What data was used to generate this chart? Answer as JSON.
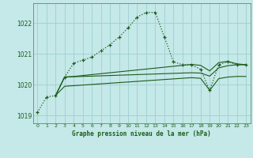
{
  "title": "Graphe pression niveau de la mer (hPa)",
  "background_color": "#c5e8e8",
  "grid_color": "#9fcfcf",
  "line_color": "#1a5c1a",
  "xlim": [
    -0.5,
    23.5
  ],
  "ylim": [
    1018.75,
    1022.65
  ],
  "xticks": [
    0,
    1,
    2,
    3,
    4,
    5,
    6,
    7,
    8,
    9,
    10,
    11,
    12,
    13,
    14,
    15,
    16,
    17,
    18,
    19,
    20,
    21,
    22,
    23
  ],
  "yticks": [
    1019,
    1020,
    1021,
    1022
  ],
  "main_x": [
    0,
    1,
    2,
    3,
    4,
    5,
    6,
    7,
    8,
    9,
    10,
    11,
    12,
    13,
    14,
    15,
    16,
    17,
    18,
    19,
    20,
    21,
    22,
    23
  ],
  "main_y": [
    1019.1,
    1019.6,
    1019.65,
    1020.25,
    1020.7,
    1020.8,
    1020.9,
    1021.1,
    1021.3,
    1021.55,
    1021.85,
    1022.2,
    1022.35,
    1022.35,
    1021.55,
    1020.75,
    1020.65,
    1020.65,
    1020.5,
    1019.82,
    1020.65,
    1020.75,
    1020.65,
    1020.65
  ],
  "line2_x": [
    2,
    3,
    4,
    5,
    6,
    7,
    8,
    9,
    10,
    11,
    12,
    13,
    14,
    15,
    16,
    17,
    18,
    19,
    20,
    21,
    22,
    23
  ],
  "line2_y": [
    1019.65,
    1020.25,
    1020.27,
    1020.3,
    1020.33,
    1020.36,
    1020.39,
    1020.42,
    1020.45,
    1020.48,
    1020.51,
    1020.54,
    1020.57,
    1020.6,
    1020.63,
    1020.66,
    1020.63,
    1020.45,
    1020.72,
    1020.76,
    1020.68,
    1020.65
  ],
  "line3_x": [
    2,
    3,
    4,
    5,
    6,
    7,
    8,
    9,
    10,
    11,
    12,
    13,
    14,
    15,
    16,
    17,
    18,
    19,
    20,
    21,
    22,
    23
  ],
  "line3_y": [
    1019.65,
    1020.25,
    1020.26,
    1020.27,
    1020.28,
    1020.29,
    1020.3,
    1020.31,
    1020.32,
    1020.33,
    1020.34,
    1020.35,
    1020.36,
    1020.37,
    1020.38,
    1020.39,
    1020.38,
    1020.28,
    1020.55,
    1020.62,
    1020.65,
    1020.65
  ],
  "line4_x": [
    2,
    3,
    4,
    5,
    6,
    7,
    8,
    9,
    10,
    11,
    12,
    13,
    14,
    15,
    16,
    17,
    18,
    19,
    20,
    21,
    22,
    23
  ],
  "line4_y": [
    1019.65,
    1019.95,
    1019.97,
    1019.99,
    1020.01,
    1020.03,
    1020.05,
    1020.07,
    1020.09,
    1020.11,
    1020.13,
    1020.15,
    1020.17,
    1020.19,
    1020.21,
    1020.23,
    1020.21,
    1019.82,
    1020.2,
    1020.25,
    1020.27,
    1020.27
  ]
}
